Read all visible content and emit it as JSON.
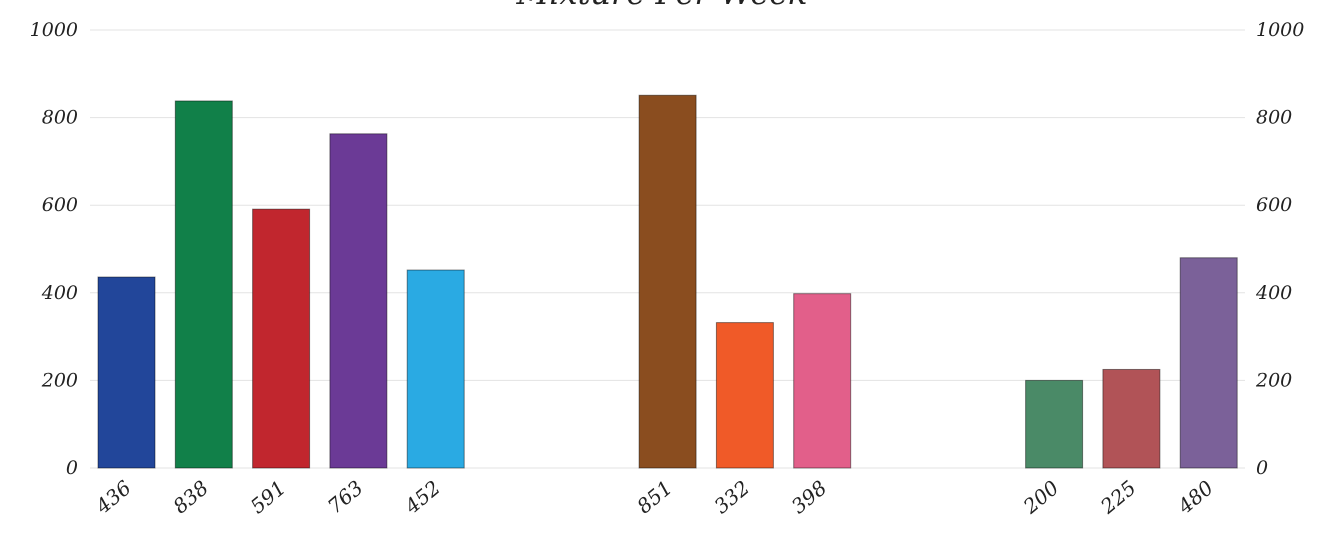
{
  "chart_data": {
    "type": "bar",
    "title": "Mixture Per Week",
    "xlabel": "",
    "ylabel": "",
    "ylim": [
      0,
      1000
    ],
    "yticks": [
      0,
      200,
      400,
      600,
      800,
      1000
    ],
    "ytick_labels": [
      "0",
      "200",
      "400",
      "600",
      "800",
      "1000"
    ],
    "grid": true,
    "legend": "none",
    "categories": [
      "436",
      "838",
      "591",
      "763",
      "452",
      "851",
      "332",
      "398",
      "200",
      "225",
      "480"
    ],
    "values": [
      436,
      838,
      591,
      763,
      452,
      851,
      332,
      398,
      200,
      225,
      480
    ],
    "groups": [
      [
        0,
        1,
        2,
        3,
        4
      ],
      [
        5,
        6,
        7
      ],
      [
        8,
        9,
        10
      ]
    ],
    "colors": [
      "#22469a",
      "#118049",
      "#c1262e",
      "#6b3a96",
      "#2aaae3",
      "#8a4d1f",
      "#f05a28",
      "#e25f8a",
      "#4a8a67",
      "#b15357",
      "#7b6199"
    ]
  }
}
